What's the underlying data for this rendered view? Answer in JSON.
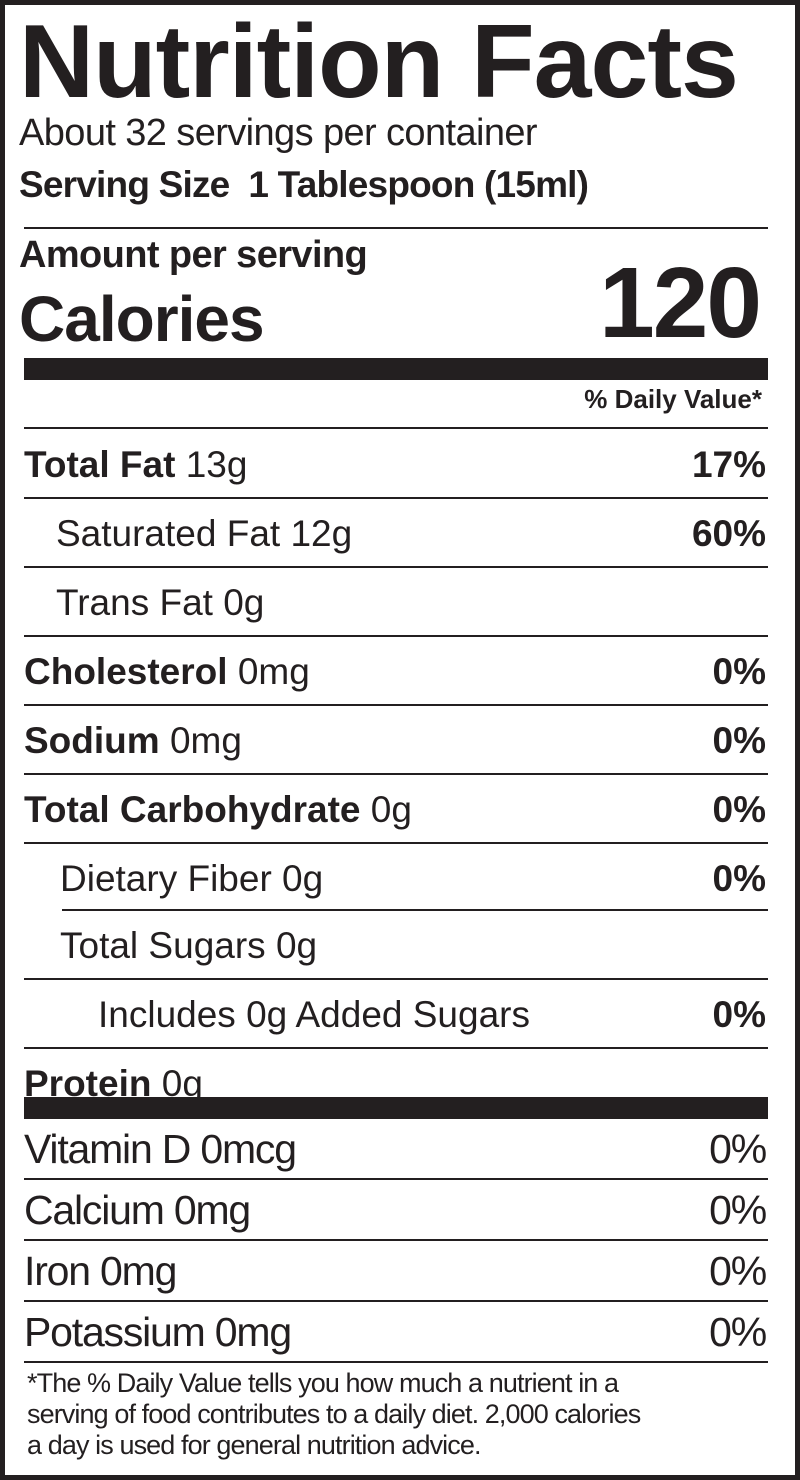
{
  "title": "Nutrition Facts",
  "servings_per_container": "About 32 servings per container",
  "serving_size": "Serving Size  1 Tablespoon (15ml)",
  "amount_per_serving": "Amount per serving",
  "calories_label": "Calories",
  "calories_value": "120",
  "daily_value_header": "% Daily Value*",
  "nutrients": [
    {
      "name": "Total Fat",
      "amount": " 13g",
      "dv": "17%",
      "level": "main"
    },
    {
      "name": "",
      "amount": "Saturated Fat 12g",
      "dv": "60%",
      "level": "sub1"
    },
    {
      "name": "",
      "amount": "Trans Fat 0g",
      "dv": "",
      "level": "sub1"
    },
    {
      "name": "Cholesterol",
      "amount": " 0mg",
      "dv": "0%",
      "level": "main"
    },
    {
      "name": "Sodium",
      "amount": " 0mg",
      "dv": "0%",
      "level": "main"
    },
    {
      "name": "Total Carbohydrate",
      "amount": " 0g",
      "dv": "0%",
      "level": "main"
    },
    {
      "name": "",
      "amount": "Dietary Fiber 0g",
      "dv": "0%",
      "level": "sub2"
    },
    {
      "name": "",
      "amount": "Total Sugars 0g",
      "dv": "",
      "level": "sub2"
    },
    {
      "name": "",
      "amount": "Includes 0g Added Sugars",
      "dv": "0%",
      "level": "sub3"
    },
    {
      "name": "Protein",
      "amount": " 0g",
      "dv": "",
      "level": "main"
    }
  ],
  "vitamins": [
    {
      "label": "Vitamin D 0mcg",
      "dv": "0%"
    },
    {
      "label": "Calcium 0mg",
      "dv": "0%"
    },
    {
      "label": "Iron 0mg",
      "dv": "0%"
    },
    {
      "label": "Potassium 0mg",
      "dv": "0%"
    }
  ],
  "footnote_lines": [
    "*The % Daily Value tells you how much a nutrient in a",
    "serving of food contributes to a daily diet. 2,000 calories",
    "a day is used for general nutrition advice."
  ],
  "colors": {
    "ink": "#231f20",
    "background": "#ffffff"
  }
}
